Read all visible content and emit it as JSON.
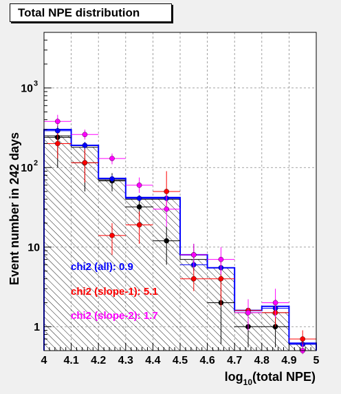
{
  "title": "Total NPE distribution",
  "chart_data": {
    "type": "histogram",
    "title": "Total NPE distribution",
    "xlabel_main": "log",
    "xlabel_sub": "10",
    "xlabel_rest": "(total NPE)",
    "ylabel": "Event number in 242 days",
    "xlim": [
      4,
      5
    ],
    "ylim": [
      0.5,
      5000
    ],
    "ylog": true,
    "grid": true,
    "xticks": [
      "4",
      "4.1",
      "4.2",
      "4.3",
      "4.4",
      "4.5",
      "4.6",
      "4.7",
      "4.8",
      "4.9",
      "5"
    ],
    "yticks": [
      {
        "value": 1,
        "label": "1"
      },
      {
        "value": 10,
        "label": "10"
      },
      {
        "value": 100,
        "label": "10",
        "exp": "2"
      },
      {
        "value": 1000,
        "label": "10",
        "exp": "3"
      }
    ],
    "bin_edges": [
      4.0,
      4.1,
      4.2,
      4.3,
      4.4,
      4.5,
      4.6,
      4.7,
      4.8,
      4.9,
      5.0
    ],
    "histograms": [
      {
        "role": "hatched",
        "color": "#000000",
        "values": [
          250,
          180,
          70,
          40,
          40,
          7,
          5.5,
          1.5,
          1.5,
          0.6
        ]
      },
      {
        "role": "mc-all",
        "color": "#0000ff",
        "values": [
          300,
          190,
          73,
          42,
          42,
          8,
          5.5,
          1.6,
          1.8,
          0.62
        ]
      }
    ],
    "series": [
      {
        "color": "#000000",
        "x": [
          4.05,
          4.15,
          4.25,
          4.35,
          4.45,
          4.55,
          4.65,
          4.75,
          4.85
        ],
        "y": [
          240,
          115,
          68,
          32,
          12,
          8,
          2,
          1,
          1
        ],
        "ylo": [
          100,
          50,
          50,
          24,
          6,
          5,
          0.6,
          0.55,
          0.55
        ],
        "yhi": [
          350,
          200,
          85,
          42,
          18,
          11,
          4,
          2.2,
          2.2
        ]
      },
      {
        "color": "#0000ff",
        "x": [
          4.05,
          4.15,
          4.25,
          4.35,
          4.45,
          4.55,
          4.65,
          4.75,
          4.85,
          4.95
        ],
        "y": [
          290,
          190,
          72,
          41,
          41,
          6,
          5.5,
          1.6,
          1.7,
          0.6
        ],
        "ylo": [
          260,
          170,
          65,
          38,
          38,
          5,
          4.5,
          1.4,
          1.5,
          0.55
        ],
        "yhi": [
          320,
          210,
          80,
          45,
          45,
          7,
          6.5,
          1.8,
          1.9,
          0.66
        ]
      },
      {
        "color": "#ff0000",
        "x": [
          4.05,
          4.15,
          4.25,
          4.35,
          4.45,
          4.55,
          4.65,
          4.75,
          4.85,
          4.95
        ],
        "y": [
          200,
          115,
          14,
          19,
          50,
          4,
          4,
          1.6,
          1.5,
          0.7
        ],
        "ylo": [
          130,
          65,
          8,
          11,
          30,
          2.8,
          1.8,
          1.2,
          1.0,
          0.55
        ],
        "yhi": [
          270,
          170,
          20,
          28,
          90,
          5.5,
          7,
          2.1,
          2.2,
          0.9
        ]
      },
      {
        "color": "#ff00ff",
        "x": [
          4.05,
          4.15,
          4.25,
          4.35,
          4.45,
          4.55,
          4.65,
          4.75,
          4.85,
          4.95
        ],
        "y": [
          380,
          260,
          130,
          60,
          30,
          8,
          7,
          1.5,
          2,
          0.5
        ],
        "ylo": [
          330,
          225,
          110,
          48,
          18,
          5.5,
          4.5,
          0.9,
          1.3,
          0.45
        ],
        "yhi": [
          460,
          300,
          150,
          75,
          45,
          11,
          10,
          2.2,
          3.0,
          0.6
        ]
      }
    ],
    "annotations": [
      {
        "text": "chi2 (all): 0.9",
        "color": "#0000ff"
      },
      {
        "text": "chi2 (slope-1): 5.1",
        "color": "#ff0000"
      },
      {
        "text": "chi2 (slope-2): 1.7",
        "color": "#ff00ff"
      }
    ]
  }
}
